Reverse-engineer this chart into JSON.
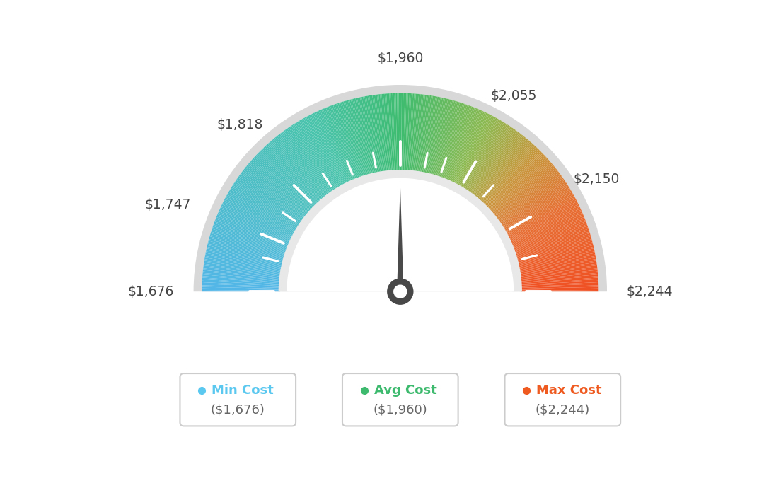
{
  "min_value": 1676,
  "avg_value": 1960,
  "max_value": 2244,
  "label_values": [
    1676,
    1747,
    1818,
    1960,
    2055,
    2150,
    2244
  ],
  "label_texts": [
    "$1,676",
    "$1,747",
    "$1,818",
    "$1,960",
    "$2,055",
    "$2,150",
    "$2,244"
  ],
  "major_tick_values": [
    1676,
    1747,
    1818,
    1960,
    2055,
    2150,
    2244
  ],
  "all_tick_values": [
    1676,
    1720,
    1747,
    1783,
    1818,
    1855,
    1890,
    1925,
    1960,
    1995,
    2020,
    2055,
    2090,
    2150,
    2197,
    2244
  ],
  "color_stops": [
    [
      0.0,
      [
        82,
        182,
        232
      ]
    ],
    [
      0.35,
      [
        72,
        195,
        170
      ]
    ],
    [
      0.5,
      [
        62,
        188,
        112
      ]
    ],
    [
      0.65,
      [
        140,
        185,
        80
      ]
    ],
    [
      0.75,
      [
        200,
        150,
        60
      ]
    ],
    [
      0.85,
      [
        230,
        110,
        50
      ]
    ],
    [
      1.0,
      [
        240,
        80,
        35
      ]
    ]
  ],
  "needle_color": "#4a4a4a",
  "background_color": "#ffffff",
  "outer_gray": "#d8d8d8",
  "inner_gray": "#e8e8e8",
  "legend_items": [
    {
      "dot_color": "#5bc8f0",
      "label": "Min Cost",
      "value": "($1,676)"
    },
    {
      "dot_color": "#3dba6e",
      "label": "Avg Cost",
      "value": "($1,960)"
    },
    {
      "dot_color": "#ee5a20",
      "label": "Max Cost",
      "value": "($2,244)"
    }
  ]
}
